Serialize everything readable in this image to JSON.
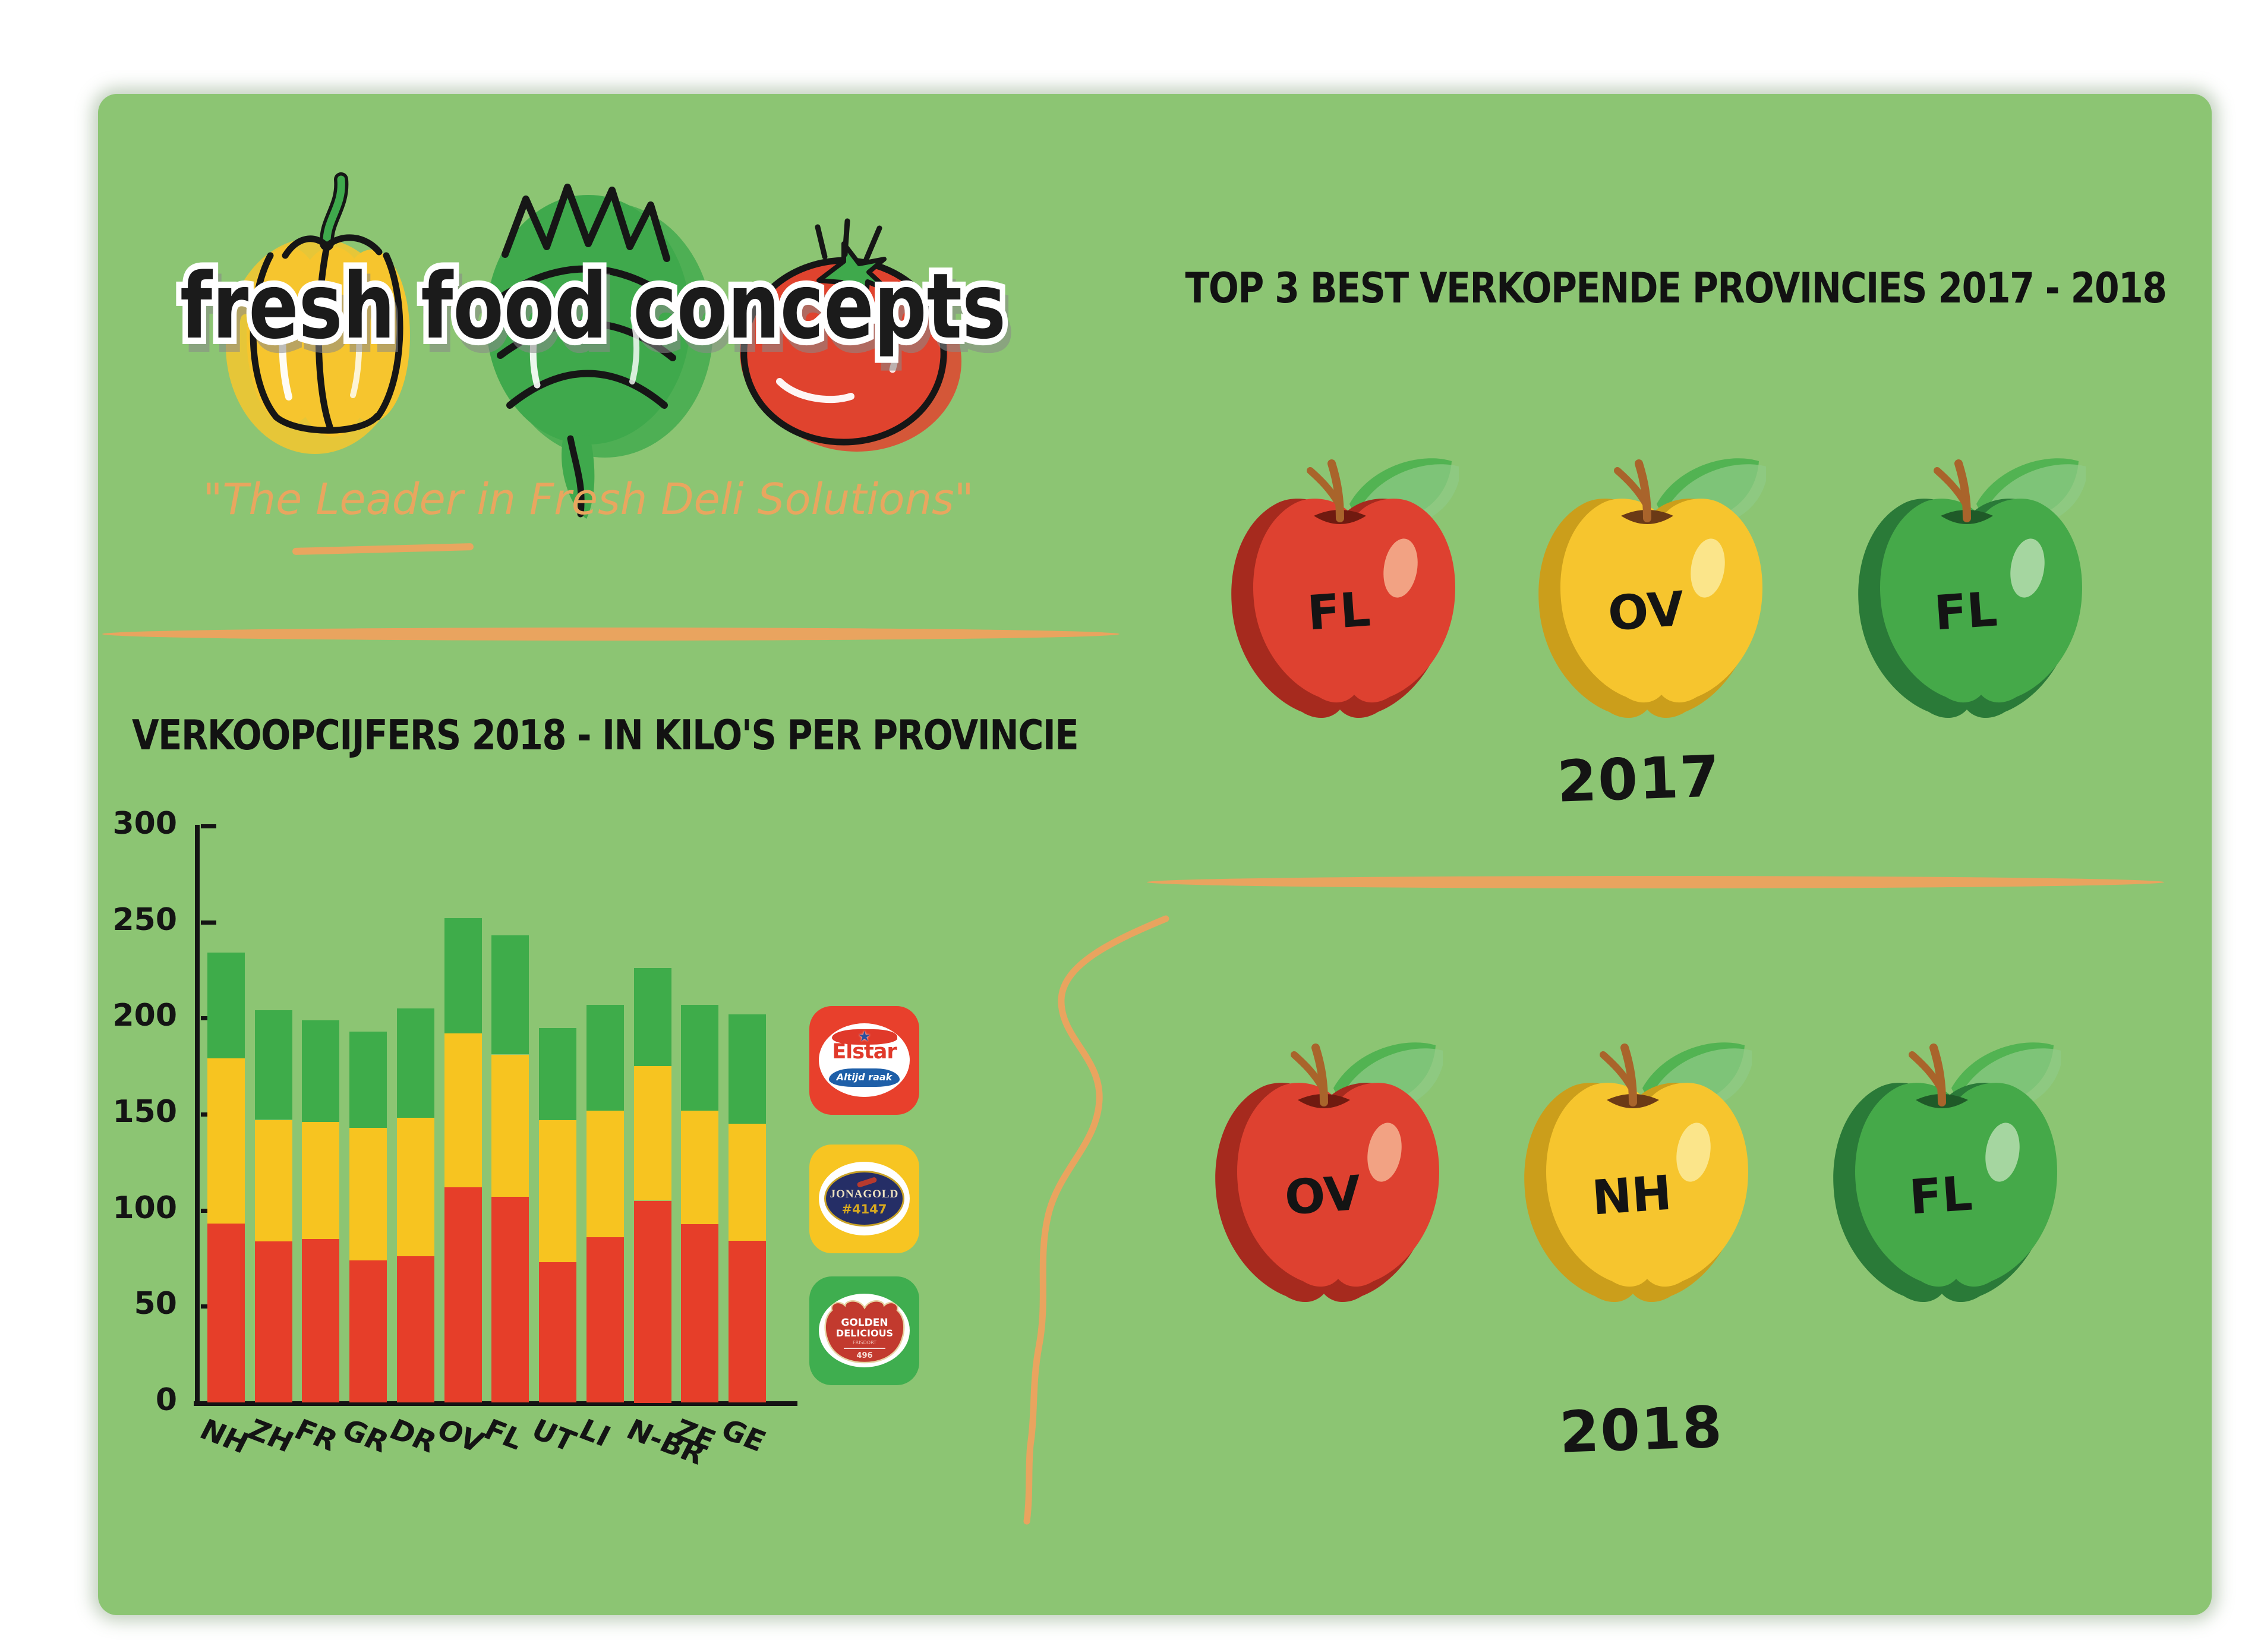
{
  "page": {
    "background": "#ffffff",
    "card_color": "#8CC573",
    "accent_orange": "#E9A45F"
  },
  "logo": {
    "text": "fresh food concepts",
    "tagline": "\"The Leader in Fresh Deli Solutions\""
  },
  "right": {
    "title": "TOP 3 BEST VERKOPENDE PROVINCIES 2017 - 2018",
    "groups": [
      {
        "year": "2017",
        "apples": [
          {
            "label": "FL",
            "scheme": "red"
          },
          {
            "label": "OV",
            "scheme": "yellow"
          },
          {
            "label": "FL",
            "scheme": "green"
          }
        ]
      },
      {
        "year": "2018",
        "apples": [
          {
            "label": "OV",
            "scheme": "red"
          },
          {
            "label": "NH",
            "scheme": "yellow"
          },
          {
            "label": "FL",
            "scheme": "green"
          }
        ]
      }
    ]
  },
  "legend": [
    {
      "name": "Elstar",
      "badge_color": "#E8402C",
      "lines": [
        "Elstar"
      ],
      "sub": "Altijd raak"
    },
    {
      "name": "Jonagold",
      "badge_color": "#F7C522",
      "lines": [
        "JONAGOLD"
      ],
      "sub": "#4147"
    },
    {
      "name": "Golden Delicious",
      "badge_color": "#3FAE4F",
      "lines": [
        "GOLDEN",
        "DELICIOUS"
      ],
      "sub": "496",
      "subtext": "FRISDORT"
    }
  ],
  "chart_data": {
    "type": "bar",
    "stacked": true,
    "title": "VERKOOPCIJFERS 2018 - IN KILO'S PER PROVINCIE",
    "categories": [
      "NH",
      "ZH",
      "FR",
      "GR",
      "DR",
      "OV",
      "FL",
      "UT",
      "LI",
      "N-BR",
      "ZE",
      "GE"
    ],
    "series": [
      {
        "name": "Elstar",
        "color": "#E63E29",
        "values": [
          93,
          84,
          85,
          74,
          76,
          112,
          107,
          73,
          86,
          105,
          93,
          84
        ]
      },
      {
        "name": "Jonagold",
        "color": "#F7C420",
        "values": [
          86,
          63,
          61,
          69,
          72,
          80,
          74,
          74,
          66,
          70,
          59,
          61
        ]
      },
      {
        "name": "Golden Delicious",
        "color": "#3EAC4A",
        "values": [
          55,
          57,
          53,
          50,
          57,
          60,
          62,
          48,
          55,
          51,
          55,
          57
        ]
      }
    ],
    "totals": [
      234,
      204,
      199,
      193,
      205,
      252,
      243,
      195,
      207,
      226,
      207,
      202
    ],
    "xlabel": "",
    "ylabel": "",
    "ylim": [
      0,
      300
    ],
    "yticks": [
      0,
      50,
      100,
      150,
      200,
      250,
      300
    ],
    "grid": false,
    "legend_position": "right-of-plot"
  },
  "apple_colors": {
    "red": {
      "dark": "#A62A1E",
      "main": "#DE4130",
      "hi": "#F2A283",
      "notch": "#701A10"
    },
    "yellow": {
      "dark": "#CB9E1B",
      "main": "#F6C52E",
      "hi": "#FBE58A",
      "notch": "#6B3A16"
    },
    "green": {
      "dark": "#2A7A38",
      "main": "#45A949",
      "hi": "#A5D6A0",
      "notch": "#1F5A28"
    },
    "leaf": "#52B352",
    "leaf_light": "#8FCB86",
    "stem": "#A9642B"
  }
}
